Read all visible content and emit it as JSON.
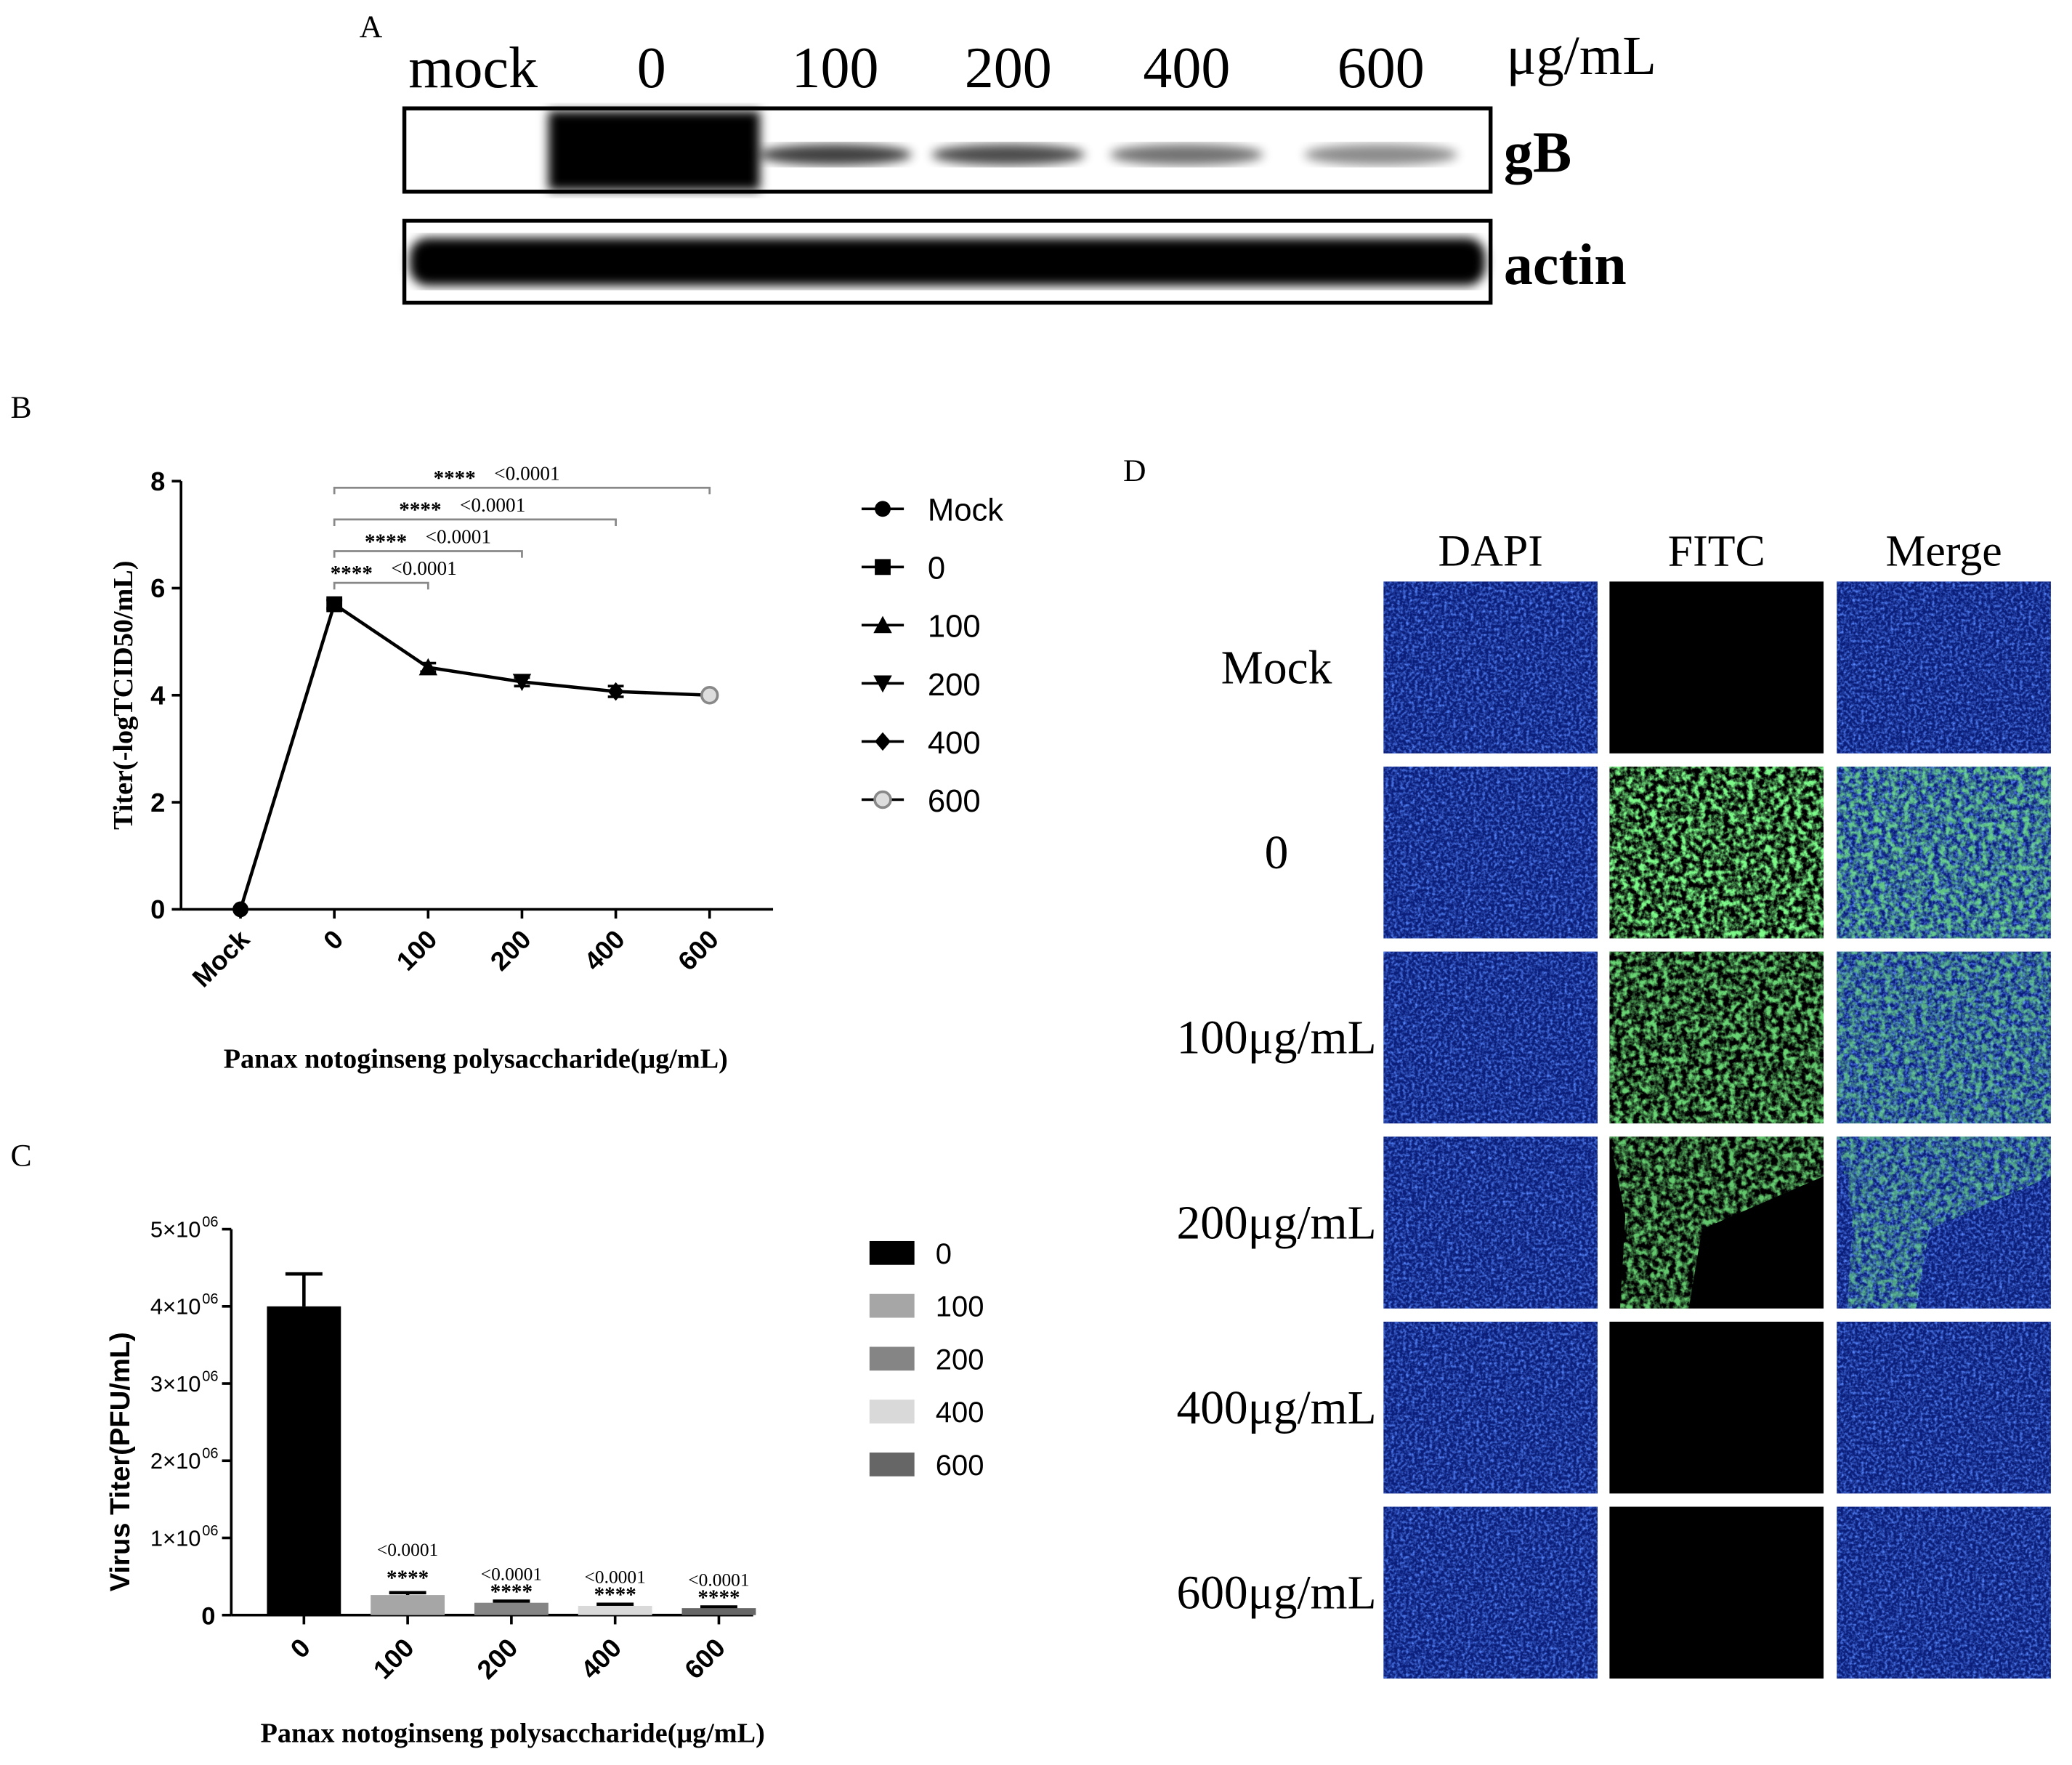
{
  "panels": {
    "A": "A",
    "B": "B",
    "C": "C",
    "D": "D"
  },
  "blot": {
    "lanes": [
      "mock",
      "0",
      "100",
      "200",
      "400",
      "600"
    ],
    "unit": "μg/mL",
    "rows": [
      "gB",
      "actin"
    ]
  },
  "chart_data": [
    {
      "type": "line",
      "categories": [
        "Mock",
        "0",
        "100",
        "200",
        "400",
        "600"
      ],
      "values": [
        0,
        5.7,
        4.52,
        4.25,
        4.07,
        4.0
      ],
      "errors": [
        0,
        0.08,
        0.08,
        0.08,
        0.1,
        0.05
      ],
      "markers": [
        "circle",
        "square",
        "triangle",
        "triangle-down",
        "diamond",
        "circle-open"
      ],
      "color": "#000000",
      "ylim": [
        0,
        8
      ],
      "yticks": [
        0,
        2,
        4,
        6,
        8
      ],
      "ylabel": "Titer(-logTCID50/mL)",
      "xlabel": "Panax notoginseng polysaccharide(μg/mL)",
      "comparisons": [
        {
          "stars": "****",
          "p": "<0.0001"
        },
        {
          "stars": "****",
          "p": "<0.0001"
        },
        {
          "stars": "****",
          "p": "<0.0001"
        },
        {
          "stars": "****",
          "p": "<0.0001"
        }
      ]
    },
    {
      "type": "bar",
      "categories": [
        "0",
        "100",
        "200",
        "400",
        "600"
      ],
      "values": [
        4000000,
        260000,
        160000,
        120000,
        90000
      ],
      "errors": [
        420000,
        30000,
        20000,
        20000,
        15000
      ],
      "colors": [
        "#000000",
        "#a6a6a6",
        "#858585",
        "#d9d9d9",
        "#666666"
      ],
      "ylim": [
        0,
        5000000
      ],
      "yticks": [
        0,
        {
          "value": 1000000,
          "label": "1×10",
          "exp": "06"
        },
        {
          "value": 2000000,
          "label": "2×10",
          "exp": "06"
        },
        {
          "value": 3000000,
          "label": "3×10",
          "exp": "06"
        },
        {
          "value": 4000000,
          "label": "4×10",
          "exp": "06"
        },
        {
          "value": 5000000,
          "label": "5×10",
          "exp": "06"
        }
      ],
      "ylabel": "Virus Titer(PFU/mL)",
      "xlabel": "Panax notoginseng polysaccharide(μg/mL)",
      "annotations": [
        {
          "p": "<0.0001",
          "stars": "****"
        },
        {
          "p": "<0.0001",
          "stars": "****"
        },
        {
          "p": "<0.0001",
          "stars": "****"
        },
        {
          "p": "<0.0001",
          "stars": "****"
        }
      ]
    }
  ],
  "immunofluorescence": {
    "columns": [
      "DAPI",
      "FITC",
      "Merge"
    ],
    "rows": [
      "Mock",
      "0",
      "100μg/mL",
      "200μg/mL",
      "400μg/mL",
      "600μg/mL"
    ]
  }
}
